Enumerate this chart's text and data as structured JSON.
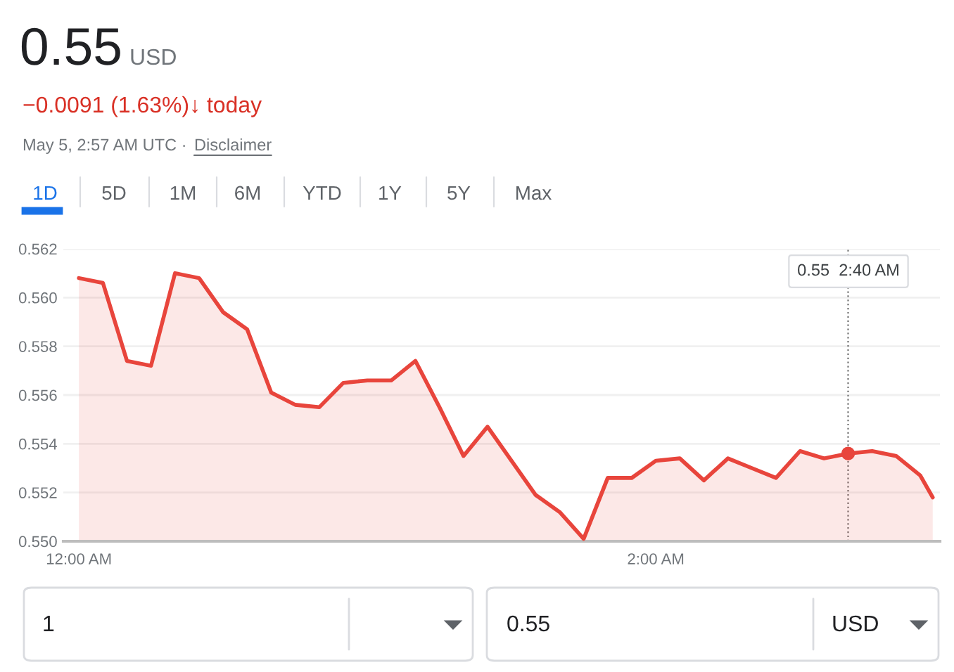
{
  "chart_data": {
    "type": "area",
    "title": "0.55",
    "x": [
      0,
      0.0833,
      0.1667,
      0.25,
      0.3333,
      0.4167,
      0.5,
      0.5833,
      0.6667,
      0.75,
      0.8333,
      0.9167,
      1.0,
      1.0833,
      1.1667,
      1.25,
      1.3333,
      1.4167,
      1.5,
      1.5833,
      1.6667,
      1.75,
      1.8333,
      1.9167,
      2.0,
      2.0833,
      2.1667,
      2.25,
      2.3333,
      2.4167,
      2.5,
      2.5833,
      2.6667,
      2.75,
      2.8333,
      2.9167,
      2.96
    ],
    "series": [
      {
        "color": "#e8453c",
        "values": [
          0.5608,
          0.5606,
          0.5574,
          0.5572,
          0.561,
          0.5608,
          0.5594,
          0.5587,
          0.5561,
          0.5556,
          0.5555,
          0.5565,
          0.5566,
          0.5566,
          0.5574,
          0.5555,
          0.5535,
          0.5547,
          0.5533,
          0.5519,
          0.5512,
          0.5501,
          0.5526,
          0.5526,
          0.5533,
          0.5534,
          0.5525,
          0.5534,
          0.553,
          0.5526,
          0.5537,
          0.5534,
          0.5536,
          0.5537,
          0.5535,
          0.5527,
          0.5518
        ]
      }
    ],
    "xlim": [
      -0.054,
      2.985
    ],
    "ylim": [
      0.55,
      0.562
    ],
    "xticks": [
      {
        "value": 0,
        "label": "12:00 AM"
      },
      {
        "value": 2,
        "label": "2:00 AM"
      }
    ],
    "yticks": [
      {
        "value": 0.55,
        "label": "0.550"
      },
      {
        "value": 0.552,
        "label": "0.552"
      },
      {
        "value": 0.554,
        "label": "0.554"
      },
      {
        "value": 0.556,
        "label": "0.556"
      },
      {
        "value": 0.558,
        "label": "0.558"
      },
      {
        "value": 0.56,
        "label": "0.560"
      },
      {
        "value": 0.562,
        "label": "0.562"
      }
    ],
    "grid": "y",
    "ref_lines": [
      {
        "axis": "x",
        "value": 2.6667,
        "line_style": "dotted",
        "color": "#757575"
      }
    ],
    "annotations": [
      "USD",
      "−0.0091 (1.63%)↓ today",
      "May 5, 2:57 AM UTC · ",
      "Disclaimer",
      "1D",
      "5D",
      "1M",
      "6M",
      "YTD",
      "1Y",
      "5Y",
      "Max",
      "1",
      "0.55",
      "USD",
      "0.55  2:40 AM"
    ]
  }
}
